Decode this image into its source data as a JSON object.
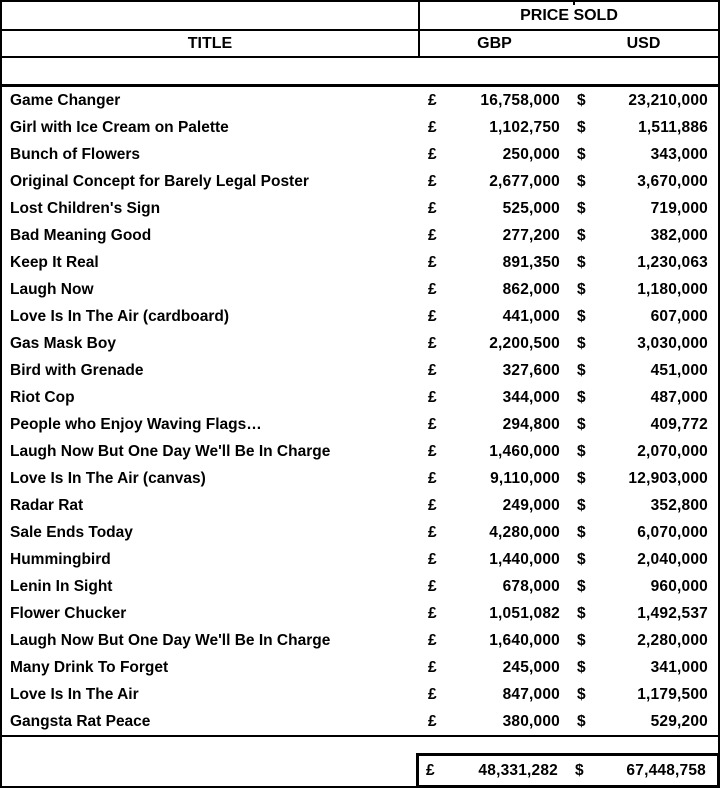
{
  "table": {
    "header": {
      "price_sold": "PRICE SOLD",
      "title": "TITLE",
      "gbp": "GBP",
      "usd": "USD"
    },
    "currency": {
      "gbp_symbol": "£",
      "usd_symbol": "$"
    },
    "rows": [
      {
        "title": "Game Changer",
        "gbp": "16,758,000",
        "usd": "23,210,000"
      },
      {
        "title": "Girl with Ice Cream on Palette",
        "gbp": "1,102,750",
        "usd": "1,511,886"
      },
      {
        "title": "Bunch of Flowers",
        "gbp": "250,000",
        "usd": "343,000"
      },
      {
        "title": "Original Concept for Barely Legal Poster",
        "gbp": "2,677,000",
        "usd": "3,670,000"
      },
      {
        "title": "Lost Children's Sign",
        "gbp": "525,000",
        "usd": "719,000"
      },
      {
        "title": "Bad Meaning Good",
        "gbp": "277,200",
        "usd": "382,000"
      },
      {
        "title": "Keep It Real",
        "gbp": "891,350",
        "usd": "1,230,063"
      },
      {
        "title": "Laugh Now",
        "gbp": "862,000",
        "usd": "1,180,000"
      },
      {
        "title": "Love Is In The Air (cardboard)",
        "gbp": "441,000",
        "usd": "607,000"
      },
      {
        "title": "Gas Mask Boy",
        "gbp": "2,200,500",
        "usd": "3,030,000"
      },
      {
        "title": "Bird with Grenade",
        "gbp": "327,600",
        "usd": "451,000"
      },
      {
        "title": "Riot Cop",
        "gbp": "344,000",
        "usd": "487,000"
      },
      {
        "title": "People who Enjoy Waving Flags…",
        "gbp": "294,800",
        "usd": "409,772"
      },
      {
        "title": "Laugh Now But One Day We'll Be In Charge",
        "gbp": "1,460,000",
        "usd": "2,070,000"
      },
      {
        "title": "Love Is In The Air (canvas)",
        "gbp": "9,110,000",
        "usd": "12,903,000"
      },
      {
        "title": "Radar Rat",
        "gbp": "249,000",
        "usd": "352,800"
      },
      {
        "title": "Sale Ends Today",
        "gbp": "4,280,000",
        "usd": "6,070,000"
      },
      {
        "title": "Hummingbird",
        "gbp": "1,440,000",
        "usd": "2,040,000"
      },
      {
        "title": "Lenin In Sight",
        "gbp": "678,000",
        "usd": "960,000"
      },
      {
        "title": "Flower Chucker",
        "gbp": "1,051,082",
        "usd": "1,492,537"
      },
      {
        "title": "Laugh Now But One Day We'll Be In Charge",
        "gbp": "1,640,000",
        "usd": "2,280,000"
      },
      {
        "title": "Many Drink To Forget",
        "gbp": "245,000",
        "usd": "341,000"
      },
      {
        "title": "Love Is In The Air",
        "gbp": "847,000",
        "usd": "1,179,500"
      },
      {
        "title": "Gangsta Rat Peace",
        "gbp": "380,000",
        "usd": "529,200"
      }
    ],
    "total": {
      "gbp": "48,331,282",
      "usd": "67,448,758"
    },
    "colors": {
      "border": "#000000",
      "background": "#ffffff",
      "text": "#000000"
    }
  }
}
